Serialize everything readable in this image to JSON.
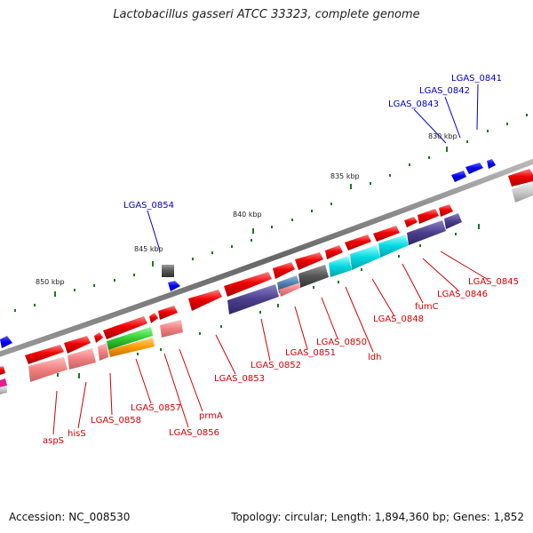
{
  "title": "Lactobacillus gasseri ATCC 33323, complete genome",
  "footer": {
    "accession": "Accession: NC_008530",
    "topology": "Topology: circular; Length: 1,894,360 bp; Genes: 1,852"
  },
  "scale_labels": [
    "830 kbp",
    "835 kbp",
    "840 kbp",
    "845 kbp",
    "850 kbp"
  ],
  "gene_labels": {
    "blue": [
      "LGAS_0841",
      "LGAS_0842",
      "LGAS_0843",
      "LGAS_0854"
    ],
    "red": [
      "LGAS_0845",
      "LGAS_0846",
      "fumC",
      "LGAS_0848",
      "ldh",
      "LGAS_0850",
      "LGAS_0851",
      "LGAS_0852",
      "LGAS_0853",
      "prmA",
      "LGAS_0856",
      "LGAS_0857",
      "LGAS_0858",
      "hisS",
      "aspS"
    ]
  },
  "colors": {
    "forward_gene": "#ee0000",
    "reverse_gene": "#0000ee",
    "cog_purple": "#4b3f8c",
    "cog_cyan": "#00d8e0",
    "cog_gray": "#555555",
    "cog_pink": "#f08080",
    "cog_green": "#33cc33",
    "cog_orange": "#ff9900",
    "cog_steelblue": "#4a7aa8",
    "tick_green": "#1a7a1a",
    "backbone": "#777777"
  }
}
